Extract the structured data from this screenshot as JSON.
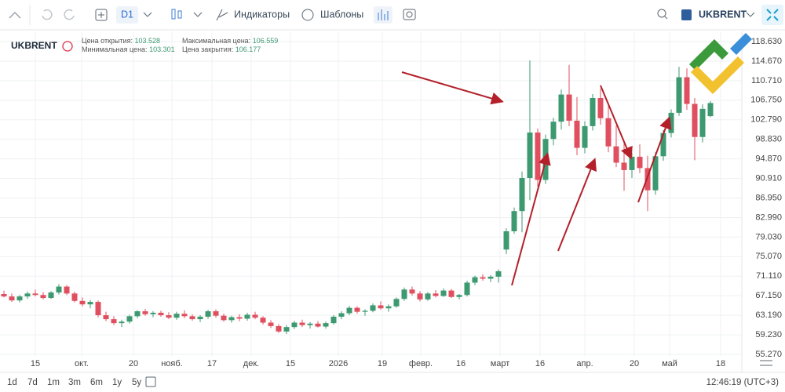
{
  "toolbar": {
    "interval": "D1",
    "indicators": "Индикаторы",
    "templates": "Шаблоны",
    "symbol": "UKBRENT"
  },
  "chart_data": {
    "type": "candlestick",
    "symbol": "UKBRENT",
    "legend_labels": {
      "open": "Цена открытия:",
      "high": "Максимальная цена:",
      "low": "Минимальная цена:",
      "close": "Цена закрытия:"
    },
    "up_color": "#3d9970",
    "down_color": "#e04f5f",
    "grid": true,
    "ylim": [
      55.27,
      118.63
    ],
    "yticks": [
      {
        "value": 55.27,
        "label": "55.270"
      },
      {
        "value": 59.23,
        "label": "59.230"
      },
      {
        "value": 63.19,
        "label": "63.190"
      },
      {
        "value": 67.15,
        "label": "67.150"
      },
      {
        "value": 71.11,
        "label": "71.110"
      },
      {
        "value": 75.07,
        "label": "75.070"
      },
      {
        "value": 79.03,
        "label": "79.030"
      },
      {
        "value": 82.99,
        "label": "82.990"
      },
      {
        "value": 86.95,
        "label": "86.950"
      },
      {
        "value": 90.91,
        "label": "90.910"
      },
      {
        "value": 94.87,
        "label": "94.870"
      },
      {
        "value": 98.83,
        "label": "98.830"
      },
      {
        "value": 102.79,
        "label": "102.790"
      },
      {
        "value": 106.75,
        "label": "106.750"
      },
      {
        "value": 110.71,
        "label": "110.710"
      },
      {
        "value": 114.67,
        "label": "114.670"
      },
      {
        "value": 118.63,
        "label": "118.630"
      }
    ],
    "x_labels": [
      "15",
      "окт.",
      "20",
      "нояб.",
      "17",
      "дек.",
      "15",
      "2026",
      "19",
      "февр.",
      "16",
      "март",
      "16",
      "апр.",
      "20",
      "май",
      "18"
    ],
    "candles": [
      [
        67.5,
        68.2,
        66.8,
        67.0
      ],
      [
        67.0,
        67.6,
        65.9,
        66.2
      ],
      [
        66.2,
        67.3,
        65.8,
        67.0
      ],
      [
        67.0,
        68.0,
        66.5,
        67.6
      ],
      [
        67.6,
        68.4,
        67.0,
        67.3
      ],
      [
        67.3,
        67.9,
        66.4,
        66.7
      ],
      [
        66.7,
        68.1,
        66.5,
        67.8
      ],
      [
        67.8,
        69.5,
        67.4,
        69.0
      ],
      [
        69.0,
        69.3,
        67.3,
        67.6
      ],
      [
        67.6,
        68.0,
        65.8,
        66.1
      ],
      [
        66.1,
        66.8,
        65.0,
        65.4
      ],
      [
        65.4,
        66.3,
        64.6,
        65.9
      ],
      [
        65.9,
        66.2,
        62.8,
        63.2
      ],
      [
        63.2,
        63.9,
        62.0,
        62.4
      ],
      [
        62.4,
        63.0,
        61.2,
        61.6
      ],
      [
        61.6,
        62.3,
        60.8,
        61.9
      ],
      [
        61.9,
        63.3,
        61.5,
        63.0
      ],
      [
        63.0,
        64.2,
        62.6,
        64.0
      ],
      [
        64.0,
        64.5,
        63.1,
        63.4
      ],
      [
        63.4,
        64.0,
        62.8,
        63.7
      ],
      [
        63.7,
        64.1,
        62.9,
        63.2
      ],
      [
        63.2,
        63.8,
        62.4,
        62.7
      ],
      [
        62.7,
        63.9,
        62.3,
        63.5
      ],
      [
        63.5,
        64.2,
        62.6,
        63.0
      ],
      [
        63.0,
        63.4,
        62.1,
        62.4
      ],
      [
        62.4,
        63.2,
        61.8,
        62.9
      ],
      [
        62.9,
        64.3,
        62.5,
        64.0
      ],
      [
        64.0,
        64.4,
        62.7,
        63.1
      ],
      [
        63.1,
        63.5,
        61.9,
        62.2
      ],
      [
        62.2,
        63.1,
        61.7,
        62.8
      ],
      [
        62.8,
        63.4,
        62.0,
        62.5
      ],
      [
        62.5,
        63.7,
        62.1,
        63.3
      ],
      [
        63.3,
        63.9,
        62.4,
        62.7
      ],
      [
        62.7,
        63.0,
        61.3,
        61.7
      ],
      [
        61.7,
        62.2,
        60.6,
        61.0
      ],
      [
        61.0,
        61.4,
        59.6,
        59.9
      ],
      [
        59.9,
        61.2,
        59.4,
        60.8
      ],
      [
        60.8,
        62.1,
        60.4,
        61.7
      ],
      [
        61.7,
        62.3,
        60.8,
        61.2
      ],
      [
        61.2,
        61.8,
        60.5,
        61.5
      ],
      [
        61.5,
        62.0,
        60.7,
        60.9
      ],
      [
        60.9,
        61.9,
        60.5,
        61.6
      ],
      [
        61.6,
        63.2,
        61.3,
        62.9
      ],
      [
        62.9,
        64.0,
        62.4,
        63.6
      ],
      [
        63.6,
        65.1,
        63.2,
        64.7
      ],
      [
        64.7,
        65.0,
        63.5,
        63.9
      ],
      [
        63.9,
        64.4,
        63.1,
        64.1
      ],
      [
        64.1,
        65.6,
        63.8,
        65.2
      ],
      [
        65.2,
        66.0,
        64.3,
        64.6
      ],
      [
        64.6,
        65.4,
        63.9,
        65.0
      ],
      [
        65.0,
        66.8,
        64.7,
        66.5
      ],
      [
        66.5,
        68.8,
        66.1,
        68.4
      ],
      [
        68.4,
        69.0,
        67.2,
        67.6
      ],
      [
        67.6,
        68.1,
        66.0,
        66.4
      ],
      [
        66.4,
        67.9,
        66.1,
        67.6
      ],
      [
        67.6,
        68.3,
        66.8,
        67.1
      ],
      [
        67.1,
        68.6,
        66.9,
        68.2
      ],
      [
        68.2,
        68.5,
        66.7,
        66.9
      ],
      [
        66.9,
        67.5,
        66.4,
        67.3
      ],
      [
        67.3,
        70.2,
        67.0,
        69.8
      ],
      [
        69.8,
        71.2,
        69.3,
        70.9
      ],
      [
        70.9,
        71.5,
        70.2,
        70.6
      ],
      [
        70.6,
        71.3,
        69.9,
        71.0
      ],
      [
        71.0,
        72.5,
        69.8,
        72.1
      ],
      [
        76.5,
        80.8,
        75.6,
        80.2
      ],
      [
        80.2,
        85.0,
        79.7,
        84.3
      ],
      [
        84.3,
        92.3,
        80.0,
        91.0
      ],
      [
        91.0,
        114.8,
        86.5,
        100.2
      ],
      [
        100.2,
        101.0,
        89.3,
        90.6
      ],
      [
        90.6,
        99.8,
        89.8,
        98.9
      ],
      [
        98.9,
        103.2,
        97.6,
        102.4
      ],
      [
        102.4,
        108.9,
        100.8,
        107.9
      ],
      [
        107.9,
        113.9,
        101.5,
        102.6
      ],
      [
        102.6,
        107.4,
        95.6,
        97.1
      ],
      [
        97.1,
        102.5,
        96.0,
        101.5
      ],
      [
        101.5,
        108.0,
        100.6,
        107.2
      ],
      [
        107.2,
        109.1,
        101.8,
        103.1
      ],
      [
        103.1,
        105.5,
        96.2,
        97.4
      ],
      [
        97.4,
        101.6,
        93.2,
        94.1
      ],
      [
        94.1,
        98.2,
        88.4,
        92.6
      ],
      [
        92.6,
        96.1,
        91.0,
        95.3
      ],
      [
        95.3,
        97.8,
        92.0,
        93.0
      ],
      [
        93.0,
        95.5,
        84.3,
        88.5
      ],
      [
        88.5,
        96.2,
        87.6,
        95.4
      ],
      [
        95.4,
        100.7,
        94.5,
        100.1
      ],
      [
        100.1,
        104.9,
        99.2,
        104.2
      ],
      [
        104.2,
        113.5,
        103.6,
        111.4
      ],
      [
        111.4,
        113.2,
        104.8,
        106.0
      ],
      [
        106.0,
        107.2,
        94.6,
        99.3
      ],
      [
        99.3,
        105.9,
        98.2,
        105.0
      ],
      [
        103.528,
        106.559,
        103.301,
        106.177
      ]
    ]
  },
  "footer": {
    "ranges": [
      "1d",
      "7d",
      "1m",
      "3m",
      "6m",
      "1y",
      "5y"
    ],
    "time": "12:46:19 (UTC+3)"
  }
}
